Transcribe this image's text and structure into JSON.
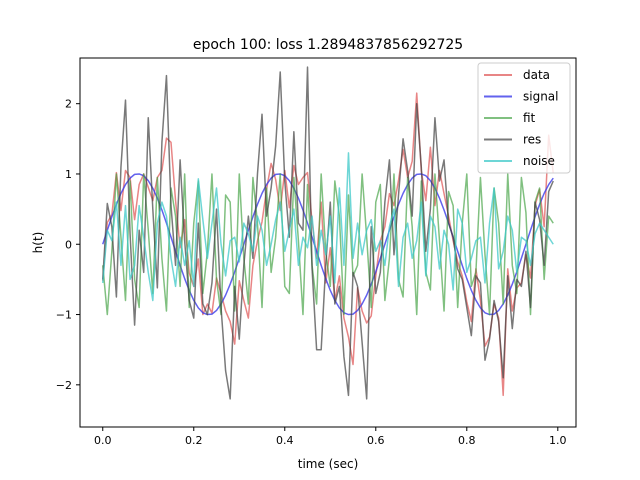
{
  "chart_data": {
    "type": "line",
    "title": "epoch 100: loss 1.2894837856292725",
    "xlabel": "time (sec)",
    "ylabel": "h(t)",
    "xlim": [
      -0.05,
      1.04
    ],
    "ylim": [
      -2.6,
      2.65
    ],
    "xticks": [
      0.0,
      0.2,
      0.4,
      0.6,
      0.8,
      1.0
    ],
    "xtick_labels": [
      "0.0",
      "0.2",
      "0.4",
      "0.6",
      "0.8",
      "1.0"
    ],
    "yticks": [
      -2,
      -1,
      0,
      1,
      2
    ],
    "ytick_labels": [
      "−2",
      "−1",
      "0",
      "1",
      "2"
    ],
    "grid": false,
    "legend_position": "top-right",
    "sample_rate": 100,
    "signal_period_sec": 0.31,
    "series": [
      {
        "name": "data",
        "color": "#e05c5c",
        "opacity": 0.75,
        "values": [
          -0.52,
          0.31,
          0.42,
          1.02,
          0.48,
          1.05,
          0.95,
          0.35,
          0.85,
          1.0,
          0.81,
          0.62,
          0.95,
          1.05,
          1.51,
          1.45,
          0.62,
          -0.05,
          0.35,
          -0.41,
          -0.6,
          -0.21,
          -1.0,
          -0.85,
          -0.98,
          -0.48,
          -0.7,
          -0.95,
          -1.1,
          -1.42,
          -0.52,
          -0.8,
          -1.05,
          -0.3,
          0.05,
          0.32,
          0.78,
          1.15,
          0.92,
          0.48,
          1.05,
          0.52,
          1.12,
          0.85,
          0.95,
          1.02,
          0.32,
          -0.2,
          0.6,
          -0.55,
          -0.05,
          -0.8,
          -0.45,
          -1.05,
          -1.32,
          -1.71,
          -0.62,
          -0.95,
          -1.12,
          -1.02,
          -0.45,
          0.05,
          0.25,
          0.72,
          0.55,
          0.91,
          1.35,
          0.95,
          1.18,
          2.15,
          1.05,
          0.62,
          1.38,
          0.55,
          1.05,
          0.72,
          0.4,
          0.05,
          -0.25,
          -0.45,
          -0.82,
          -1.1,
          -0.35,
          -0.8,
          -1.45,
          -1.32,
          -0.85,
          -1.05,
          -2.15,
          -0.35,
          -0.95,
          -0.62,
          -0.55,
          -0.15,
          -0.48,
          0.55,
          0.78,
          0.25,
          1.55,
          1.01
        ]
      },
      {
        "name": "signal",
        "color": "#3b3bea",
        "opacity": 0.8,
        "values": [
          0.0,
          0.199,
          0.391,
          0.568,
          0.724,
          0.849,
          0.941,
          0.994,
          1.0,
          0.975,
          0.905,
          0.797,
          0.656,
          0.488,
          0.301,
          0.101,
          -0.101,
          -0.301,
          -0.488,
          -0.656,
          -0.797,
          -0.905,
          -0.975,
          -1.0,
          -0.994,
          -0.941,
          -0.849,
          -0.724,
          -0.568,
          -0.391,
          -0.199,
          0.0,
          0.199,
          0.391,
          0.568,
          0.724,
          0.849,
          0.941,
          0.994,
          1.0,
          0.975,
          0.905,
          0.797,
          0.656,
          0.488,
          0.301,
          0.101,
          -0.101,
          -0.301,
          -0.488,
          -0.656,
          -0.797,
          -0.905,
          -0.975,
          -1.0,
          -0.994,
          -0.941,
          -0.849,
          -0.724,
          -0.568,
          -0.391,
          -0.199,
          0.0,
          0.199,
          0.391,
          0.568,
          0.724,
          0.849,
          0.941,
          0.994,
          1.0,
          0.975,
          0.905,
          0.797,
          0.656,
          0.488,
          0.301,
          0.101,
          -0.101,
          -0.301,
          -0.488,
          -0.656,
          -0.797,
          -0.905,
          -0.975,
          -1.0,
          -0.994,
          -0.941,
          -0.849,
          -0.724,
          -0.568,
          -0.391,
          -0.199,
          0.0,
          0.199,
          0.391,
          0.568,
          0.724,
          0.849,
          0.941
        ]
      },
      {
        "name": "fit",
        "color": "#3c9e3c",
        "opacity": 0.65,
        "values": [
          -0.3,
          -1.0,
          -0.1,
          1.0,
          0.1,
          -0.8,
          0.9,
          -0.5,
          -0.9,
          1.0,
          0.2,
          -0.7,
          0.95,
          -0.2,
          -0.95,
          0.8,
          0.4,
          -0.6,
          1.0,
          -0.9,
          0.3,
          0.9,
          -0.7,
          -0.1,
          1.0,
          -0.5,
          -1.0,
          0.7,
          0.6,
          -0.95,
          1.0,
          -0.2,
          -0.85,
          0.95,
          0.3,
          -0.9,
          0.8,
          -0.4,
          0.1,
          1.0,
          -0.6,
          -0.7,
          0.95,
          0.05,
          -1.0,
          0.85,
          -0.3,
          -0.85,
          1.0,
          -0.1,
          -0.6,
          0.9,
          0.4,
          -1.0,
          0.7,
          -0.45,
          -0.3,
          1.0,
          0.1,
          -0.9,
          0.6,
          0.85,
          -0.8,
          -0.2,
          1.0,
          -0.5,
          -0.75,
          0.95,
          0.25,
          -1.0,
          0.9,
          -0.4,
          -0.65,
          1.0,
          0.05,
          -0.95,
          0.75,
          0.55,
          -0.9,
          0.3,
          1.0,
          -0.6,
          -0.4,
          0.95,
          -0.15,
          -1.0,
          0.8,
          0.3,
          -0.85,
          1.0,
          -0.3,
          -0.7,
          0.95,
          0.45,
          -1.0,
          0.6,
          0.8,
          -0.5,
          0.4,
          0.3
        ]
      },
      {
        "name": "res",
        "color": "#404040",
        "opacity": 0.7,
        "values": [
          -0.5,
          0.58,
          0.25,
          -0.75,
          1.1,
          2.05,
          0.15,
          -1.15,
          0.2,
          -0.4,
          1.8,
          0.5,
          -0.62,
          1.45,
          2.4,
          0.55,
          -0.3,
          1.2,
          0.05,
          -0.8,
          -1.05,
          0.3,
          -0.85,
          -1.0,
          -0.55,
          0.5,
          -0.9,
          -1.8,
          -2.2,
          -0.6,
          -1.35,
          -0.3,
          0.4,
          -0.2,
          1.0,
          1.85,
          0.4,
          0.8,
          1.4,
          2.45,
          0.9,
          0.1,
          1.6,
          0.3,
          0.2,
          2.52,
          -0.35,
          -1.5,
          -1.5,
          -0.3,
          0.6,
          -0.85,
          -0.6,
          -1.6,
          -2.15,
          -0.4,
          -0.6,
          -1.4,
          -2.2,
          0.25,
          -0.7,
          -0.4,
          0.6,
          1.2,
          -0.15,
          0.7,
          1.5,
          1.05,
          0.4,
          2.0,
          1.1,
          -0.1,
          0.5,
          1.8,
          0.9,
          1.2,
          0.3,
          0.1,
          -0.35,
          -0.5,
          -0.9,
          -1.3,
          -0.45,
          -0.55,
          -1.65,
          -1.35,
          -0.8,
          -1.1,
          -1.9,
          -0.45,
          -1.2,
          -0.5,
          -0.6,
          -0.1,
          -0.9,
          0.6,
          0.35,
          -0.3,
          0.75,
          0.9
        ]
      },
      {
        "name": "noise",
        "color": "#3cc8c8",
        "opacity": 0.75,
        "values": [
          -0.55,
          0.2,
          0.05,
          0.6,
          -0.3,
          0.55,
          -0.5,
          -0.3,
          0.55,
          0.1,
          -0.4,
          -0.8,
          0.3,
          0.6,
          0.4,
          -0.2,
          -0.6,
          0.1,
          -0.3,
          0.05,
          -0.6,
          0.93,
          0.35,
          -0.2,
          0.3,
          0.8,
          0.0,
          -0.45,
          0.05,
          0.1,
          -0.25,
          0.3,
          0.15,
          -0.1,
          0.4,
          0.2,
          -0.3,
          0.0,
          0.35,
          0.6,
          -0.1,
          0.2,
          0.5,
          -0.3,
          0.1,
          -0.05,
          0.4,
          -0.3,
          0.2,
          -0.15,
          0.4,
          -0.55,
          0.8,
          -0.3,
          1.3,
          -0.2,
          0.3,
          -0.15,
          0.2,
          0.35,
          -0.1,
          0.05,
          -0.3,
          0.25,
          0.5,
          -0.6,
          0.1,
          0.3,
          -0.2,
          0.05,
          0.6,
          -0.45,
          0.4,
          0.25,
          -0.35,
          0.2,
          0.0,
          -0.65,
          0.5,
          0.3,
          -0.4,
          -0.2,
          0.05,
          0.1,
          -0.55,
          0.3,
          0.8,
          -0.35,
          -0.1,
          0.4,
          0.2,
          -0.4,
          0.1,
          0.05,
          -0.3,
          0.15,
          0.3,
          0.2,
          0.1,
          0.0
        ]
      }
    ]
  }
}
